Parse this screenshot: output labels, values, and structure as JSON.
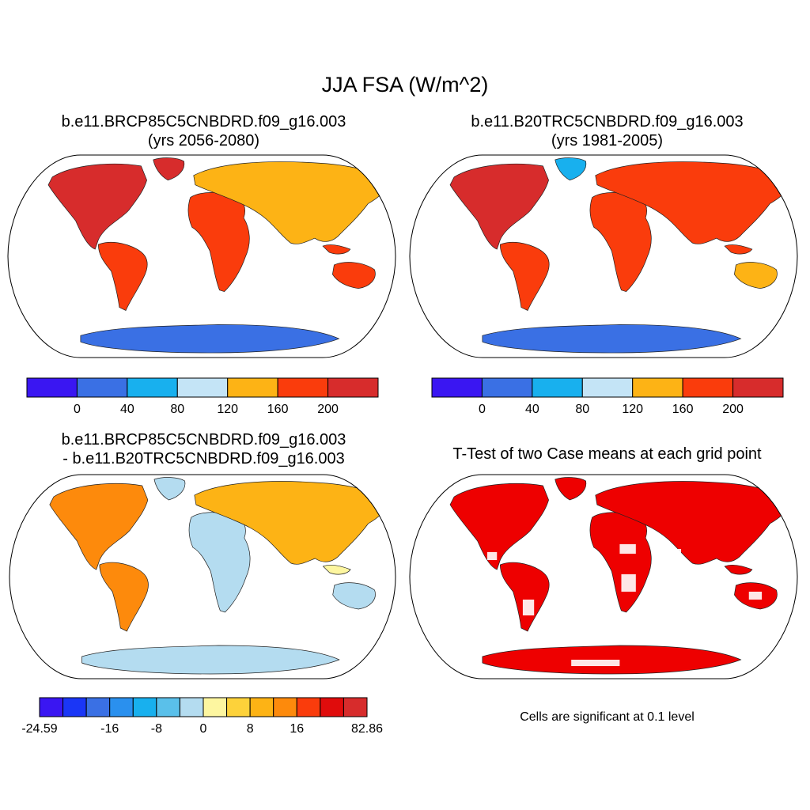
{
  "title": "JJA FSA (W/m^2)",
  "panels": [
    {
      "title_line1": "b.e11.BRCP85C5CNBDRD.f09_g16.003",
      "title_line2": "(yrs 2056-2080)"
    },
    {
      "title_line1": "b.e11.B20TRC5CNBDRD.f09_g16.003",
      "title_line2": "(yrs 1981-2005)"
    },
    {
      "title_line1": "b.e11.BRCP85C5CNBDRD.f09_g16.003",
      "title_line2": "- b.e11.B20TRC5CNBDRD.f09_g16.003"
    },
    {
      "title_line1": "T-Test of two Case means at each grid point",
      "note": "Cells are significant at 0.1 level"
    }
  ],
  "colorbars": {
    "mean": {
      "colors": [
        "#3a16f2",
        "#3a70e4",
        "#18b0ee",
        "#c4e4f6",
        "#fdb315",
        "#fa3c0c",
        "#d72c2c"
      ],
      "labels": [
        "0",
        "40",
        "80",
        "120",
        "160",
        "200"
      ]
    },
    "diff": {
      "colors": [
        "#3a16f2",
        "#1a36f6",
        "#3a70e4",
        "#2a90ee",
        "#18b0ee",
        "#5ac0ea",
        "#b4dcf0",
        "#fdf6a0",
        "#fdd23a",
        "#fdb315",
        "#fd8a0c",
        "#fa3c0c",
        "#e00c0c",
        "#d72c2c"
      ],
      "labels": [
        "-24.59",
        "-16",
        "-8",
        "0",
        "8",
        "16",
        "82.86"
      ]
    }
  },
  "significance_color": "#ee0000"
}
